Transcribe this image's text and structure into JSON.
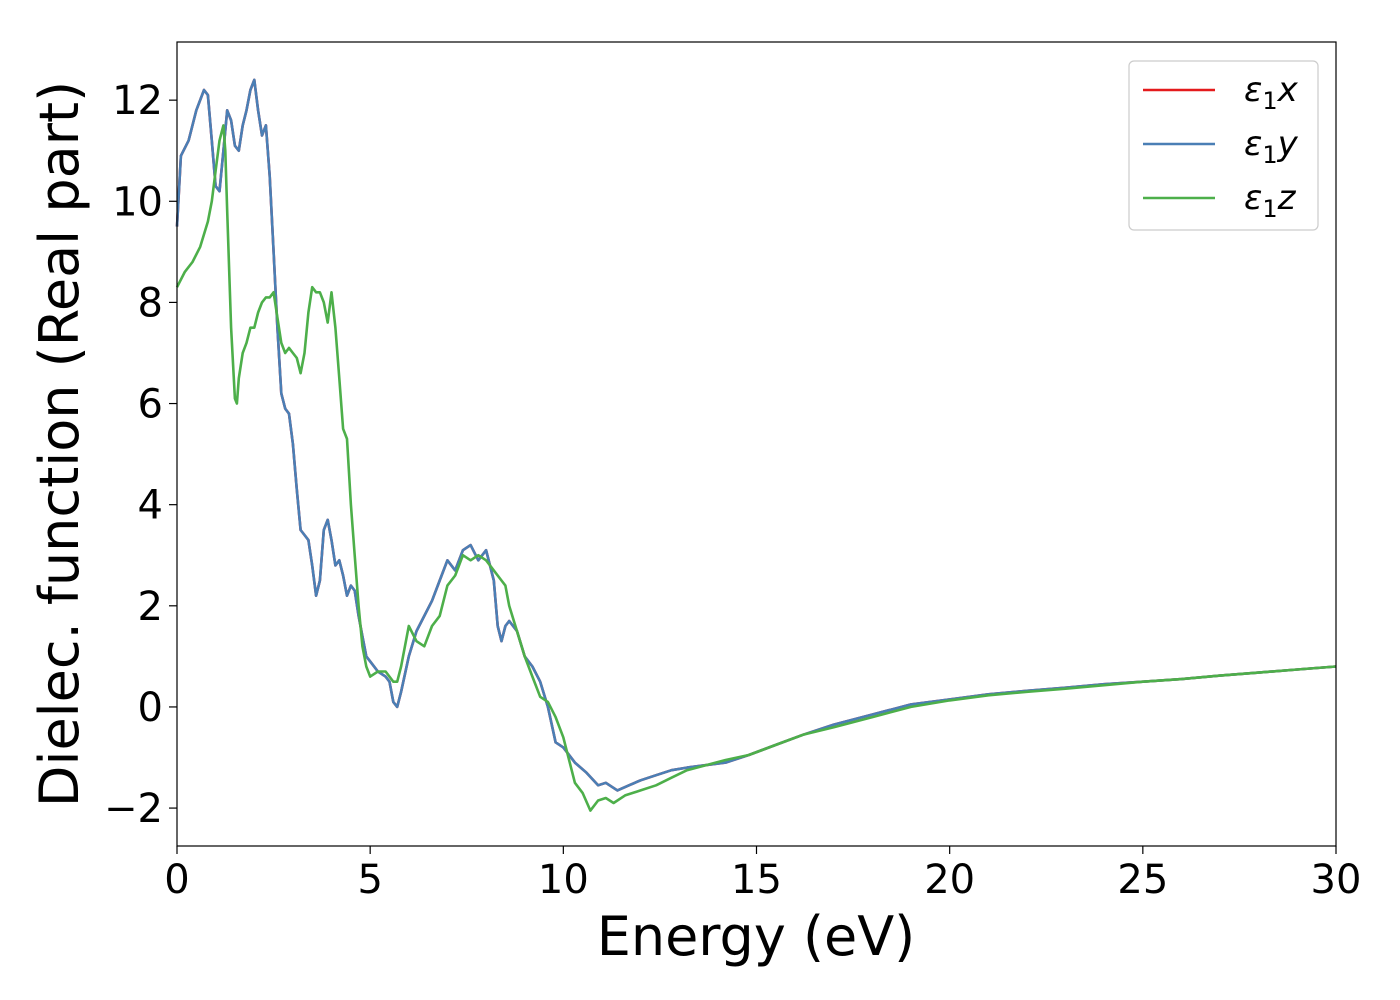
{
  "chart_data": {
    "type": "line",
    "xlabel": "Energy (eV)",
    "ylabel": "Dielec. function (Real part)",
    "xlim": [
      0,
      30
    ],
    "ylim": [
      -2.75,
      13.15
    ],
    "xticks": [
      0,
      5,
      10,
      15,
      20,
      25,
      30
    ],
    "xtick_labels": [
      "0",
      "5",
      "10",
      "15",
      "20",
      "25",
      "30"
    ],
    "yticks": [
      -2,
      0,
      2,
      4,
      6,
      8,
      10,
      12
    ],
    "ytick_labels": [
      "−2",
      "0",
      "2",
      "4",
      "6",
      "8",
      "10",
      "12"
    ],
    "grid": false,
    "legend_position": "top-right",
    "series": [
      {
        "name": "ε₁x",
        "legend_base": "ε",
        "legend_sub": "1",
        "legend_var": "x",
        "color": "#e41a1c",
        "x": [
          0,
          0.1,
          0.3,
          0.5,
          0.7,
          0.8,
          0.9,
          1.0,
          1.1,
          1.2,
          1.3,
          1.4,
          1.5,
          1.6,
          1.7,
          1.8,
          1.9,
          2.0,
          2.1,
          2.2,
          2.3,
          2.4,
          2.5,
          2.6,
          2.7,
          2.8,
          2.9,
          3.0,
          3.1,
          3.2,
          3.3,
          3.4,
          3.5,
          3.6,
          3.7,
          3.8,
          3.9,
          4.0,
          4.1,
          4.2,
          4.3,
          4.4,
          4.5,
          4.6,
          4.7,
          4.8,
          4.9,
          5.0,
          5.2,
          5.4,
          5.5,
          5.6,
          5.7,
          5.8,
          6.0,
          6.2,
          6.4,
          6.6,
          6.8,
          7.0,
          7.2,
          7.4,
          7.6,
          7.8,
          8.0,
          8.2,
          8.3,
          8.4,
          8.5,
          8.6,
          8.8,
          9.0,
          9.2,
          9.4,
          9.6,
          9.8,
          10.0,
          10.3,
          10.6,
          10.9,
          11.1,
          11.4,
          11.7,
          12.0,
          12.4,
          12.8,
          13.2,
          13.7,
          14.2,
          14.8,
          15.5,
          16.2,
          17.0,
          18.0,
          19.0,
          20.0,
          21.0,
          22.0,
          23.0,
          24.0,
          25.0,
          26.0,
          27.0,
          28.0,
          29.0,
          30.0
        ],
        "values": [
          9.5,
          10.9,
          11.2,
          11.8,
          12.2,
          12.1,
          11.2,
          10.3,
          10.2,
          11.0,
          11.8,
          11.6,
          11.1,
          11.0,
          11.5,
          11.8,
          12.2,
          12.4,
          11.8,
          11.3,
          11.5,
          10.5,
          9.0,
          7.5,
          6.2,
          5.9,
          5.8,
          5.2,
          4.3,
          3.5,
          3.4,
          3.3,
          2.8,
          2.2,
          2.5,
          3.5,
          3.7,
          3.3,
          2.8,
          2.9,
          2.6,
          2.2,
          2.4,
          2.3,
          1.8,
          1.4,
          1.0,
          0.9,
          0.7,
          0.6,
          0.5,
          0.1,
          0.0,
          0.3,
          1.0,
          1.5,
          1.8,
          2.1,
          2.5,
          2.9,
          2.7,
          3.1,
          3.2,
          2.9,
          3.1,
          2.5,
          1.6,
          1.3,
          1.6,
          1.7,
          1.5,
          1.0,
          0.8,
          0.5,
          0.0,
          -0.7,
          -0.8,
          -1.1,
          -1.3,
          -1.55,
          -1.5,
          -1.65,
          -1.55,
          -1.45,
          -1.35,
          -1.25,
          -1.2,
          -1.15,
          -1.1,
          -0.95,
          -0.75,
          -0.55,
          -0.35,
          -0.15,
          0.05,
          0.15,
          0.25,
          0.32,
          0.38,
          0.45,
          0.5,
          0.55,
          0.62,
          0.68,
          0.74,
          0.8
        ]
      },
      {
        "name": "ε₁y",
        "legend_base": "ε",
        "legend_sub": "1",
        "legend_var": "y",
        "color": "#4a7fb5",
        "x": [
          0,
          0.1,
          0.3,
          0.5,
          0.7,
          0.8,
          0.9,
          1.0,
          1.1,
          1.2,
          1.3,
          1.4,
          1.5,
          1.6,
          1.7,
          1.8,
          1.9,
          2.0,
          2.1,
          2.2,
          2.3,
          2.4,
          2.5,
          2.6,
          2.7,
          2.8,
          2.9,
          3.0,
          3.1,
          3.2,
          3.3,
          3.4,
          3.5,
          3.6,
          3.7,
          3.8,
          3.9,
          4.0,
          4.1,
          4.2,
          4.3,
          4.4,
          4.5,
          4.6,
          4.7,
          4.8,
          4.9,
          5.0,
          5.2,
          5.4,
          5.5,
          5.6,
          5.7,
          5.8,
          6.0,
          6.2,
          6.4,
          6.6,
          6.8,
          7.0,
          7.2,
          7.4,
          7.6,
          7.8,
          8.0,
          8.2,
          8.3,
          8.4,
          8.5,
          8.6,
          8.8,
          9.0,
          9.2,
          9.4,
          9.6,
          9.8,
          10.0,
          10.3,
          10.6,
          10.9,
          11.1,
          11.4,
          11.7,
          12.0,
          12.4,
          12.8,
          13.2,
          13.7,
          14.2,
          14.8,
          15.5,
          16.2,
          17.0,
          18.0,
          19.0,
          20.0,
          21.0,
          22.0,
          23.0,
          24.0,
          25.0,
          26.0,
          27.0,
          28.0,
          29.0,
          30.0
        ],
        "values": [
          9.5,
          10.9,
          11.2,
          11.8,
          12.2,
          12.1,
          11.2,
          10.3,
          10.2,
          11.0,
          11.8,
          11.6,
          11.1,
          11.0,
          11.5,
          11.8,
          12.2,
          12.4,
          11.8,
          11.3,
          11.5,
          10.5,
          9.0,
          7.5,
          6.2,
          5.9,
          5.8,
          5.2,
          4.3,
          3.5,
          3.4,
          3.3,
          2.8,
          2.2,
          2.5,
          3.5,
          3.7,
          3.3,
          2.8,
          2.9,
          2.6,
          2.2,
          2.4,
          2.3,
          1.8,
          1.4,
          1.0,
          0.9,
          0.7,
          0.6,
          0.5,
          0.1,
          0.0,
          0.3,
          1.0,
          1.5,
          1.8,
          2.1,
          2.5,
          2.9,
          2.7,
          3.1,
          3.2,
          2.9,
          3.1,
          2.5,
          1.6,
          1.3,
          1.6,
          1.7,
          1.5,
          1.0,
          0.8,
          0.5,
          0.0,
          -0.7,
          -0.8,
          -1.1,
          -1.3,
          -1.55,
          -1.5,
          -1.65,
          -1.55,
          -1.45,
          -1.35,
          -1.25,
          -1.2,
          -1.15,
          -1.1,
          -0.95,
          -0.75,
          -0.55,
          -0.35,
          -0.15,
          0.05,
          0.15,
          0.25,
          0.32,
          0.38,
          0.45,
          0.5,
          0.55,
          0.62,
          0.68,
          0.74,
          0.8
        ]
      },
      {
        "name": "ε₁z",
        "legend_base": "ε",
        "legend_sub": "1",
        "legend_var": "z",
        "color": "#4daf4a",
        "x": [
          0,
          0.2,
          0.4,
          0.6,
          0.8,
          0.9,
          1.0,
          1.1,
          1.2,
          1.25,
          1.3,
          1.4,
          1.5,
          1.55,
          1.6,
          1.7,
          1.8,
          1.9,
          2.0,
          2.1,
          2.2,
          2.3,
          2.4,
          2.5,
          2.6,
          2.7,
          2.8,
          2.9,
          3.0,
          3.1,
          3.2,
          3.3,
          3.4,
          3.5,
          3.6,
          3.7,
          3.8,
          3.9,
          4.0,
          4.1,
          4.2,
          4.3,
          4.4,
          4.5,
          4.6,
          4.7,
          4.8,
          4.9,
          5.0,
          5.2,
          5.4,
          5.6,
          5.7,
          5.8,
          6.0,
          6.2,
          6.4,
          6.6,
          6.8,
          7.0,
          7.2,
          7.4,
          7.6,
          7.8,
          8.0,
          8.2,
          8.4,
          8.5,
          8.6,
          8.8,
          9.0,
          9.2,
          9.4,
          9.6,
          9.8,
          10.0,
          10.3,
          10.5,
          10.7,
          10.9,
          11.1,
          11.3,
          11.6,
          12.0,
          12.4,
          12.8,
          13.2,
          13.7,
          14.2,
          14.8,
          15.5,
          16.2,
          17.0,
          18.0,
          19.0,
          20.0,
          21.0,
          22.0,
          23.0,
          24.0,
          25.0,
          26.0,
          27.0,
          28.0,
          29.0,
          30.0
        ],
        "values": [
          8.3,
          8.6,
          8.8,
          9.1,
          9.6,
          10.0,
          10.6,
          11.2,
          11.5,
          11.0,
          9.8,
          7.5,
          6.1,
          6.0,
          6.5,
          7.0,
          7.2,
          7.5,
          7.5,
          7.8,
          8.0,
          8.1,
          8.1,
          8.2,
          7.7,
          7.2,
          7.0,
          7.1,
          7.0,
          6.9,
          6.6,
          7.0,
          7.8,
          8.3,
          8.2,
          8.2,
          8.0,
          7.6,
          8.2,
          7.5,
          6.5,
          5.5,
          5.3,
          4.0,
          3.0,
          2.0,
          1.2,
          0.8,
          0.6,
          0.7,
          0.7,
          0.5,
          0.5,
          0.8,
          1.6,
          1.3,
          1.2,
          1.6,
          1.8,
          2.4,
          2.6,
          3.0,
          2.9,
          3.0,
          2.9,
          2.7,
          2.5,
          2.4,
          2.0,
          1.5,
          1.0,
          0.6,
          0.2,
          0.1,
          -0.2,
          -0.6,
          -1.5,
          -1.7,
          -2.05,
          -1.85,
          -1.8,
          -1.9,
          -1.75,
          -1.65,
          -1.55,
          -1.4,
          -1.25,
          -1.15,
          -1.05,
          -0.95,
          -0.75,
          -0.55,
          -0.4,
          -0.2,
          0.0,
          0.13,
          0.23,
          0.3,
          0.36,
          0.43,
          0.5,
          0.55,
          0.62,
          0.68,
          0.74,
          0.8
        ]
      }
    ]
  }
}
